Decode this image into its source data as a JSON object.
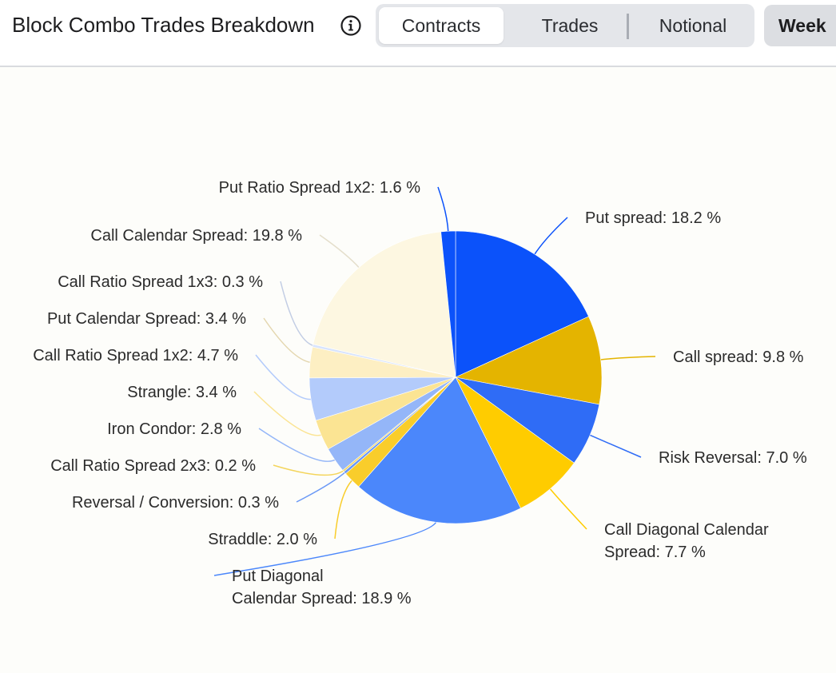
{
  "header": {
    "title": "Block Combo Trades Breakdown",
    "info_icon": "info-icon",
    "tabs": [
      {
        "label": "Contracts",
        "active": true
      },
      {
        "label": "Trades",
        "active": false
      },
      {
        "label": "Notional",
        "active": false
      }
    ],
    "period_label": "Week"
  },
  "colors": {
    "header_bg": "#ffffff",
    "page_bg": "#fdfdfa",
    "segment_bg": "#e4e6ea"
  },
  "chart_data": {
    "type": "pie",
    "title": "",
    "label_suffix": " %",
    "slices": [
      {
        "name": "Put spread",
        "value": 18.2,
        "display": "18.2",
        "color": "#0b52fa"
      },
      {
        "name": "Call spread",
        "value": 9.8,
        "display": "9.8",
        "color": "#e4b400"
      },
      {
        "name": "Risk Reversal",
        "value": 7.0,
        "display": "7.0",
        "color": "#2f6cf6"
      },
      {
        "name": "Call Diagonal Calendar Spread",
        "value": 7.7,
        "display": "7.7",
        "color": "#ffcc00"
      },
      {
        "name": "Put Diagonal Calendar Spread",
        "value": 18.9,
        "display": "18.9",
        "color": "#4b87fb"
      },
      {
        "name": "Straddle",
        "value": 2.0,
        "display": "2.0",
        "color": "#f9cd2b"
      },
      {
        "name": "Reversal / Conversion",
        "value": 0.3,
        "display": "0.3",
        "color": "#6a98f6"
      },
      {
        "name": "Call Ratio Spread 2x3",
        "value": 0.2,
        "display": "0.2",
        "color": "#f4d55c"
      },
      {
        "name": "Iron Condor",
        "value": 2.8,
        "display": "2.8",
        "color": "#94b6f8"
      },
      {
        "name": "Strangle",
        "value": 3.4,
        "display": "3.4",
        "color": "#fbe493"
      },
      {
        "name": "Call Ratio Spread 1x2",
        "value": 4.7,
        "display": "4.7",
        "color": "#b3cbfb"
      },
      {
        "name": "Put Calendar Spread",
        "value": 3.4,
        "display": "3.4",
        "color": "#fdefc3"
      },
      {
        "name": "Call Ratio Spread 1x3",
        "value": 0.3,
        "display": "0.3",
        "color": "#d8e4fd"
      },
      {
        "name": "Call Calendar Spread",
        "value": 19.8,
        "display": "19.8",
        "color": "#fdf7e1"
      },
      {
        "name": "Put Ratio Spread 1x2",
        "value": 1.6,
        "display": "1.6",
        "color": "#0b52fa"
      }
    ]
  }
}
